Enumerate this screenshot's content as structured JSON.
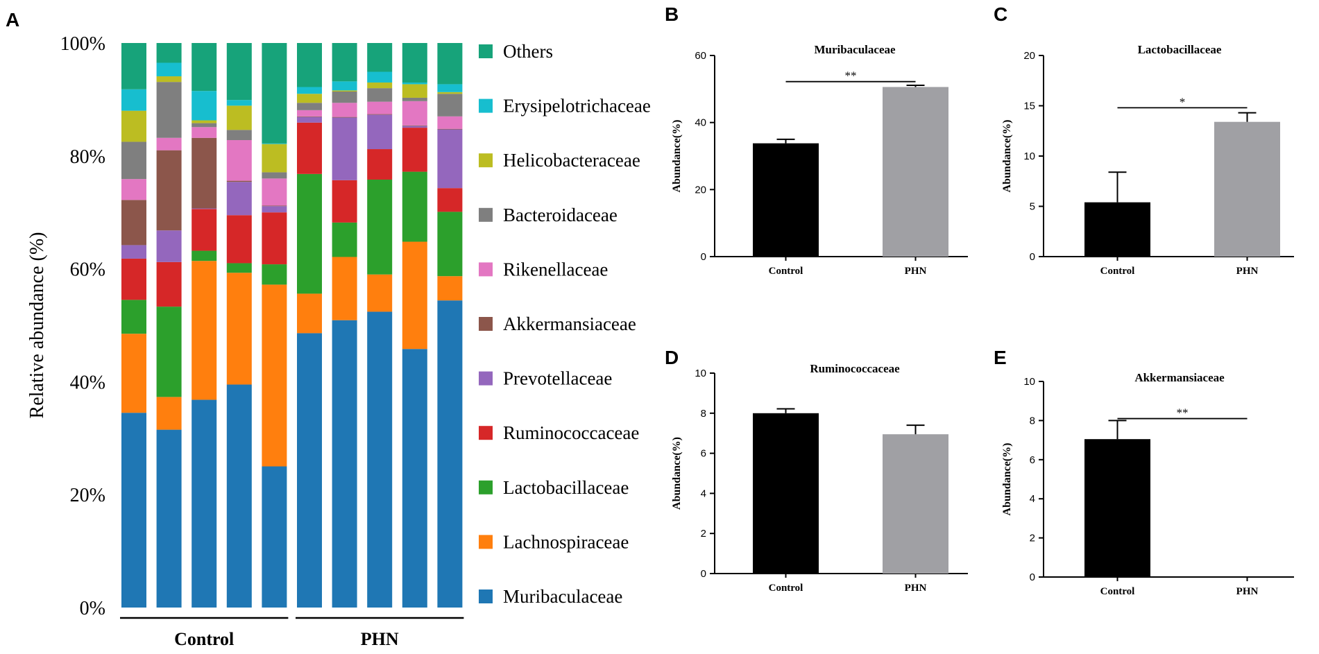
{
  "chart_data": [
    {
      "type": "bar",
      "panel": "A",
      "stacked": true,
      "ylabel": "Relative abundance (%)",
      "ylim": [
        0,
        100
      ],
      "yticks": [
        "0%",
        "20%",
        "40%",
        "60%",
        "80%",
        "100%"
      ],
      "groups": [
        {
          "label": "Control",
          "samples": [
            0,
            1,
            2,
            3,
            4
          ]
        },
        {
          "label": "PHN",
          "samples": [
            5,
            6,
            7,
            8,
            9
          ]
        }
      ],
      "series": [
        {
          "name": "Muribaculaceae",
          "color": "#1f77b4",
          "values": [
            34.5,
            31.5,
            36.8,
            39.5,
            25.0,
            48.6,
            50.9,
            52.4,
            45.8,
            54.4
          ]
        },
        {
          "name": "Lachnospiraceae",
          "color": "#ff7f0e",
          "values": [
            14.0,
            5.8,
            24.6,
            19.8,
            32.2,
            7.0,
            11.2,
            6.6,
            19.0,
            4.3
          ]
        },
        {
          "name": "Lactobacillaceae",
          "color": "#2ca02c",
          "values": [
            6.0,
            16.0,
            1.8,
            1.7,
            3.6,
            21.2,
            6.1,
            16.8,
            12.4,
            11.4
          ]
        },
        {
          "name": "Ruminococcaceae",
          "color": "#d62728",
          "values": [
            7.3,
            7.9,
            7.4,
            8.5,
            9.2,
            9.1,
            7.5,
            5.4,
            7.8,
            4.2
          ]
        },
        {
          "name": "Prevotellaceae",
          "color": "#9467bd",
          "values": [
            2.4,
            5.6,
            0.1,
            5.9,
            1.1,
            1.0,
            11.1,
            6.1,
            0.3,
            10.4
          ]
        },
        {
          "name": "Akkermansiaceae",
          "color": "#8c564b",
          "values": [
            8.0,
            14.2,
            12.5,
            0.2,
            0.1,
            0.1,
            0.1,
            0.1,
            0.1,
            0.1
          ]
        },
        {
          "name": "Rikenellaceae",
          "color": "#e377c2",
          "values": [
            3.7,
            2.2,
            1.9,
            7.2,
            4.8,
            1.1,
            2.5,
            2.2,
            4.3,
            2.2
          ]
        },
        {
          "name": "Bacteroidaceae",
          "color": "#7f7f7f",
          "values": [
            6.6,
            9.9,
            0.7,
            1.8,
            1.1,
            1.3,
            2.0,
            2.4,
            0.6,
            4.0
          ]
        },
        {
          "name": "Helicobacteraceae",
          "color": "#bcbd22",
          "values": [
            5.5,
            1.0,
            0.5,
            4.3,
            5.0,
            1.6,
            0.2,
            1.0,
            2.4,
            0.3
          ]
        },
        {
          "name": "Erysipelotrichaceae",
          "color": "#17becf",
          "values": [
            3.8,
            2.4,
            5.2,
            1.0,
            0.1,
            1.2,
            1.6,
            1.9,
            0.3,
            1.4
          ]
        },
        {
          "name": "Others",
          "color": "#17a37a",
          "values": [
            8.2,
            3.5,
            8.5,
            10.1,
            17.8,
            7.8,
            6.8,
            5.1,
            7.0,
            7.3
          ]
        }
      ],
      "legend_order": [
        "Others",
        "Erysipelotrichaceae",
        "Helicobacteraceae",
        "Bacteroidaceae",
        "Rikenellaceae",
        "Akkermansiaceae",
        "Prevotellaceae",
        "Ruminococcaceae",
        "Lactobacillaceae",
        "Lachnospiraceae",
        "Muribaculaceae"
      ]
    },
    {
      "type": "bar",
      "panel": "B",
      "title": "Muribaculaceae",
      "ylabel": "Abundance(%)",
      "ylim": [
        0,
        60
      ],
      "yticks": [
        0,
        20,
        40,
        60
      ],
      "categories": [
        "Control",
        "PHN"
      ],
      "values": [
        33.8,
        50.6
      ],
      "errors": [
        1.2,
        0.5
      ],
      "colors": [
        "#000000",
        "#a0a0a4"
      ],
      "significance": "**",
      "sig_level": 52.2
    },
    {
      "type": "bar",
      "panel": "C",
      "title": "Lactobacillaceae",
      "ylabel": "Abundance(%)",
      "ylim": [
        0,
        20
      ],
      "yticks": [
        0,
        5,
        10,
        15,
        20
      ],
      "categories": [
        "Control",
        "PHN"
      ],
      "values": [
        5.4,
        13.4
      ],
      "errors": [
        3.0,
        0.9
      ],
      "colors": [
        "#000000",
        "#a0a0a4"
      ],
      "significance": "*",
      "sig_level": 14.8
    },
    {
      "type": "bar",
      "panel": "D",
      "title": "Ruminococcaceae",
      "ylabel": "Abundance(%)",
      "ylim": [
        0,
        10
      ],
      "yticks": [
        0,
        2,
        4,
        6,
        8,
        10
      ],
      "categories": [
        "Control",
        "PHN"
      ],
      "values": [
        8.0,
        6.95
      ],
      "errors": [
        0.22,
        0.45
      ],
      "colors": [
        "#000000",
        "#a0a0a4"
      ],
      "significance": "",
      "sig_level": null
    },
    {
      "type": "bar",
      "panel": "E",
      "title": "Akkermansiaceae",
      "ylabel": "Abundance(%)",
      "ylim": [
        0,
        10
      ],
      "yticks": [
        0,
        2,
        4,
        6,
        8,
        10
      ],
      "categories": [
        "Control",
        "PHN"
      ],
      "values": [
        7.05,
        0.0
      ],
      "errors": [
        0.95,
        0.0
      ],
      "colors": [
        "#000000",
        "#a0a0a4"
      ],
      "significance": "**",
      "sig_level": 8.1
    }
  ]
}
